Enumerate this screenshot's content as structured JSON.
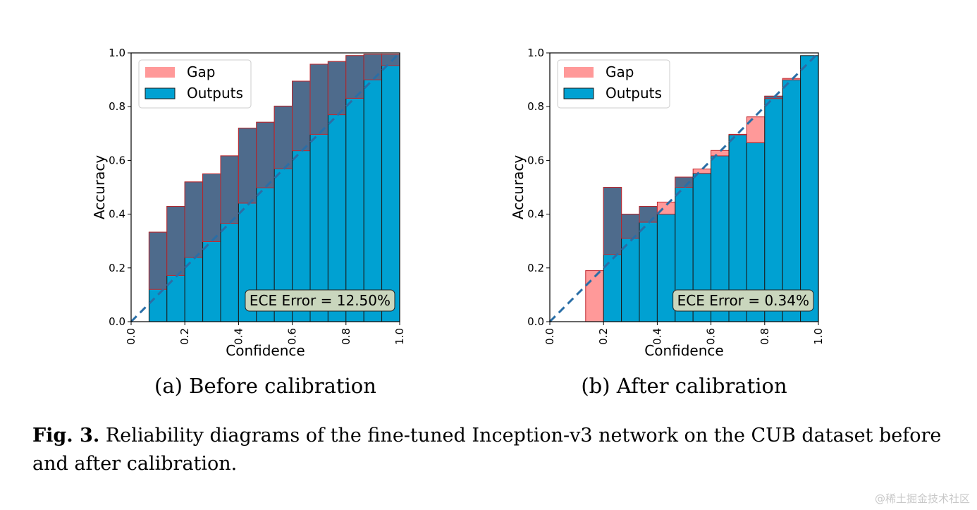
{
  "colors": {
    "gap_fill": "#ff9999",
    "gap_stroke": "#c1272d",
    "outputs_fill": "#00a1d2",
    "overlap_fill": "#4e6b8c",
    "diag": "#2a6ea6",
    "ece_box": "#c9d6bd"
  },
  "chart_data": [
    {
      "type": "bar",
      "subcaption": "(a) Before calibration",
      "xlabel": "Confidence",
      "ylabel": "Accuracy",
      "xlim": [
        0,
        1
      ],
      "ylim": [
        0,
        1
      ],
      "xticks": [
        "0.0",
        "0.2",
        "0.4",
        "0.6",
        "0.8",
        "1.0"
      ],
      "yticks": [
        "0.0",
        "0.2",
        "0.4",
        "0.6",
        "0.8",
        "1.0"
      ],
      "legend": {
        "gap_label": "Gap",
        "outputs_label": "Outputs",
        "location": "upper-left"
      },
      "ece_label": "ECE Error = 12.50%",
      "bin_edges": [
        0,
        0.0667,
        0.1333,
        0.2,
        0.2667,
        0.3333,
        0.4,
        0.4667,
        0.5333,
        0.6,
        0.6667,
        0.7333,
        0.8,
        0.8667,
        0.9333,
        1.0
      ],
      "outputs": [
        0.0,
        0.333,
        0.429,
        0.52,
        0.55,
        0.617,
        0.72,
        0.742,
        0.802,
        0.895,
        0.958,
        0.968,
        0.99,
        0.995,
        0.995
      ],
      "gap_reference": [
        0.0,
        0.12,
        0.172,
        0.239,
        0.298,
        0.366,
        0.441,
        0.498,
        0.569,
        0.636,
        0.697,
        0.77,
        0.831,
        0.9,
        0.953
      ]
    },
    {
      "type": "bar",
      "subcaption": "(b) After calibration",
      "xlabel": "Confidence",
      "ylabel": "Accuracy",
      "xlim": [
        0,
        1
      ],
      "ylim": [
        0,
        1
      ],
      "xticks": [
        "0.0",
        "0.2",
        "0.4",
        "0.6",
        "0.8",
        "1.0"
      ],
      "yticks": [
        "0.0",
        "0.2",
        "0.4",
        "0.6",
        "0.8",
        "1.0"
      ],
      "legend": {
        "gap_label": "Gap",
        "outputs_label": "Outputs",
        "location": "upper-left"
      },
      "ece_label": "ECE Error = 0.34%",
      "bin_edges": [
        0,
        0.0667,
        0.1333,
        0.2,
        0.2667,
        0.3333,
        0.4,
        0.4667,
        0.5333,
        0.6,
        0.6667,
        0.7333,
        0.8,
        0.8667,
        0.9333,
        1.0
      ],
      "outputs": [
        0.0,
        0.0,
        0.0,
        0.5,
        0.4,
        0.429,
        0.4,
        0.538,
        0.552,
        0.617,
        0.697,
        0.666,
        0.839,
        0.9,
        0.99
      ],
      "gap_reference": [
        0.0,
        0.0,
        0.19,
        0.25,
        0.31,
        0.37,
        0.445,
        0.5,
        0.568,
        0.637,
        0.695,
        0.762,
        0.83,
        0.905,
        0.99
      ]
    }
  ],
  "caption": {
    "label": "Fig. 3.",
    "text": "Reliability diagrams of the fine-tuned Inception-v3 network on the CUB dataset before and after calibration."
  },
  "watermark": "@稀土掘金技术社区"
}
